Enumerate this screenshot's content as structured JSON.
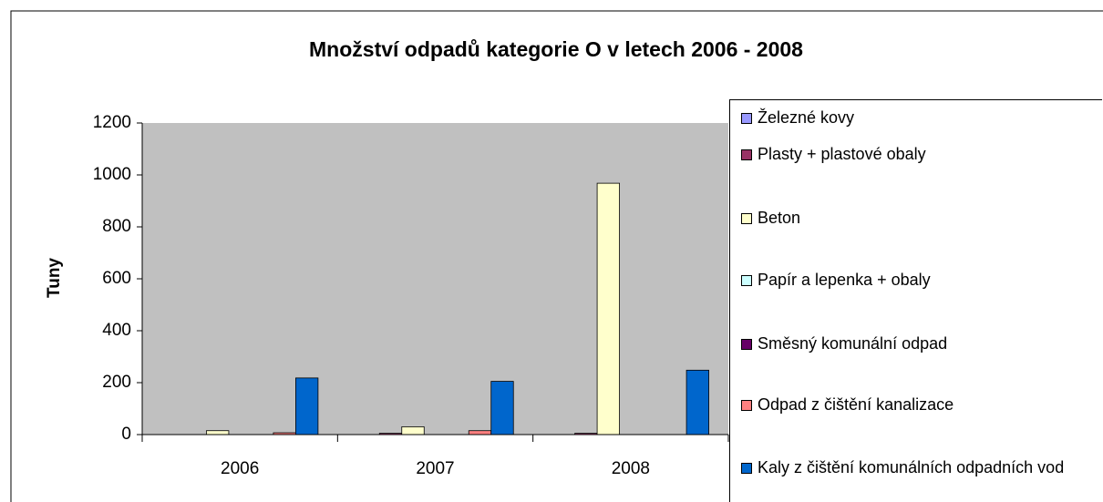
{
  "chart_data": {
    "type": "bar",
    "title": "Množství odpadů kategorie O v letech 2006 - 2008",
    "y_label": "Tuny",
    "categories": [
      "2006",
      "2007",
      "2008"
    ],
    "series": [
      {
        "name": "Železné kovy",
        "color": "#9999ff",
        "values": [
          0,
          0,
          0
        ]
      },
      {
        "name": "Plasty + plastové obaly",
        "color": "#993366",
        "values": [
          0,
          5,
          5
        ]
      },
      {
        "name": "Beton",
        "color": "#ffffcc",
        "values": [
          15,
          30,
          968
        ]
      },
      {
        "name": "Papír a lepenka + obaly",
        "color": "#ccffff",
        "values": [
          0,
          0,
          0
        ]
      },
      {
        "name": "Směsný komunální odpad",
        "color": "#660066",
        "values": [
          0,
          0,
          0
        ]
      },
      {
        "name": "Odpad z čištění kanalizace",
        "color": "#ff8080",
        "values": [
          7,
          15,
          0
        ]
      },
      {
        "name": "Kaly z čištění komunálních odpadních vod",
        "color": "#0066cc",
        "values": [
          218,
          205,
          248
        ]
      }
    ],
    "ylim": [
      0,
      1200
    ],
    "yticks": [
      0,
      200,
      400,
      600,
      800,
      1000,
      1200
    ],
    "plot_background": "#c0c0c0",
    "legend": "right"
  }
}
